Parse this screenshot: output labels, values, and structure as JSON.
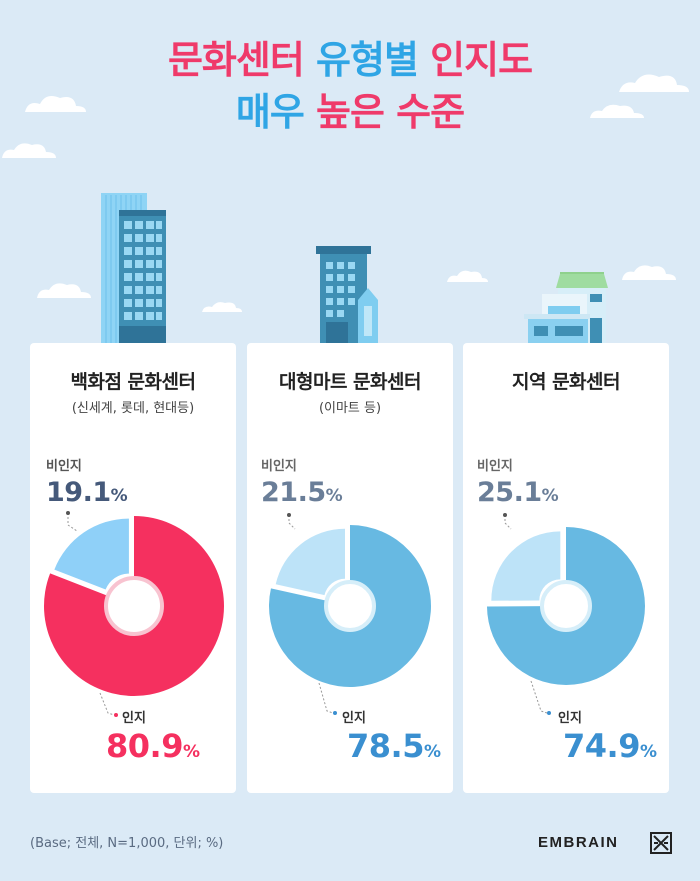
{
  "title": {
    "line1_a": "문화센터",
    "line1_b": "유형별",
    "line1_c": "인지도",
    "line2_a": "매우",
    "line2_b": "높은 수준"
  },
  "colors": {
    "pink": "#ef3a6a",
    "blue": "#2fa5e5",
    "aware_pink": "#f5305f",
    "aware_blue": "#67b9e2",
    "nonaware_blue_1": "#8fd0f8",
    "nonaware_blue_2": "#bde3f8",
    "background": "#dbeaf6"
  },
  "chart_data": [
    {
      "type": "pie",
      "title": "백화점 문화센터",
      "subtitle": "(신세계, 롯데, 현대등)",
      "categories": [
        "인지",
        "비인지"
      ],
      "values": [
        80.9,
        19.1
      ],
      "nonaware_label": "비인지",
      "nonaware_value": "19.1",
      "aware_label": "인지",
      "aware_value": "80.9"
    },
    {
      "type": "pie",
      "title": "대형마트 문화센터",
      "subtitle": "(이마트 등)",
      "categories": [
        "인지",
        "비인지"
      ],
      "values": [
        78.5,
        21.5
      ],
      "nonaware_label": "비인지",
      "nonaware_value": "21.5",
      "aware_label": "인지",
      "aware_value": "78.5"
    },
    {
      "type": "pie",
      "title": "지역 문화센터",
      "subtitle": "",
      "categories": [
        "인지",
        "비인지"
      ],
      "values": [
        74.9,
        25.1
      ],
      "nonaware_label": "비인지",
      "nonaware_value": "25.1",
      "aware_label": "인지",
      "aware_value": "74.9"
    }
  ],
  "percent_sign": "%",
  "footer": {
    "base": "(Base; 전체, N=1,000, 단위; %)",
    "logo": "EMBRAIN"
  }
}
